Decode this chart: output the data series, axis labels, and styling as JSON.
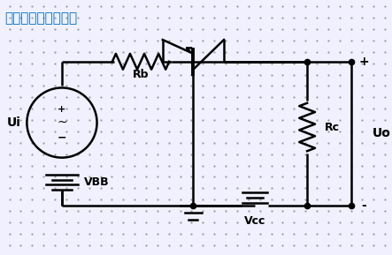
{
  "title": "基本共基放大电路：",
  "title_color": "#0070C0",
  "title_fontsize": 11,
  "bg_color": "#F0F0FF",
  "dot_color": "#999999",
  "line_color": "#000000",
  "label_Rb": "Rb",
  "label_Rc": "Rc",
  "label_VBB": "VBB",
  "label_Vcc": "Vcc",
  "label_Ui": "Ui",
  "label_Uo": "Uo",
  "label_plus": "+",
  "label_minus": "-"
}
